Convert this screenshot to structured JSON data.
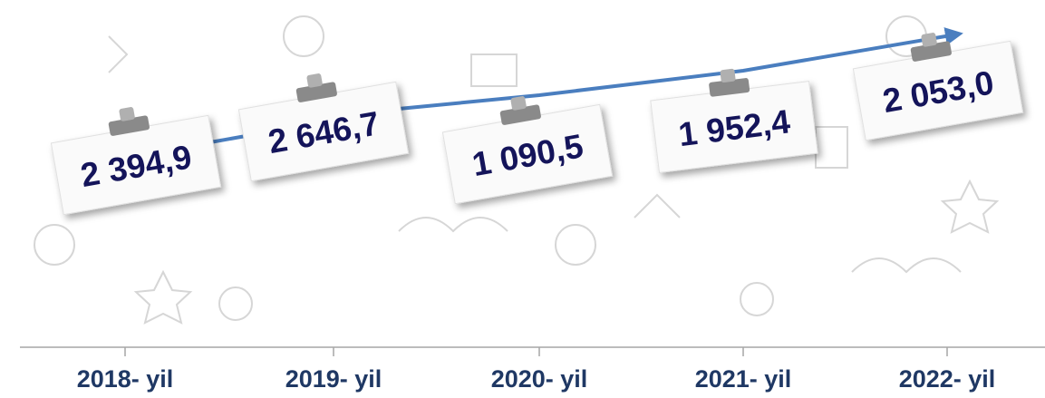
{
  "chart_data": {
    "type": "line",
    "categories": [
      "2018- yil",
      "2019- yil",
      "2020- yil",
      "2021- yil",
      "2022- yil"
    ],
    "values": [
      2394.9,
      2646.7,
      1090.5,
      1952.4,
      2053.0
    ],
    "value_labels": [
      "2 394,9",
      "2 646,7",
      "1 090,5",
      "1 952,4",
      "2 053,0"
    ],
    "color": "#4a7ebf"
  }
}
